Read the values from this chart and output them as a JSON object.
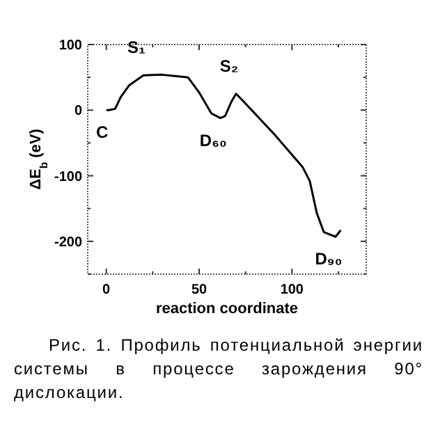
{
  "chart_data": {
    "type": "line",
    "xlabel": "reaction coordinate",
    "ylabel": "ΔE$_{b}$ (eV)",
    "xlim": [
      -10,
      140
    ],
    "ylim": [
      -250,
      100
    ],
    "xticks": [
      0,
      {
        "value": 25,
        "label": null
      },
      50,
      {
        "value": 75,
        "label": null
      },
      100,
      {
        "value": 125,
        "label": null
      }
    ],
    "yticks": [
      {
        "value": -250,
        "label": null
      },
      -200,
      {
        "value": -150,
        "label": null
      },
      -100,
      {
        "value": -50,
        "label": null
      },
      0,
      {
        "value": 50,
        "label": null
      },
      100
    ],
    "series": [
      {
        "color": "#000000",
        "x": [
          0.5,
          1.5,
          4.8,
          7.8,
          12.4,
          20,
          30,
          44,
          50,
          56.6,
          61.4,
          64,
          67.4,
          69.9,
          74,
          90.6,
          105.8,
          109.6,
          113.4,
          117.2,
          123.5,
          126
        ],
        "values": [
          0,
          0,
          2,
          20,
          38,
          53,
          54,
          50,
          27,
          -5,
          -12,
          -9,
          13,
          25,
          13,
          -37,
          -87,
          -108,
          -157,
          -186,
          -193,
          -184
        ]
      }
    ],
    "grid": false,
    "marker": "none",
    "line_style": "solid",
    "annotations": [
      {
        "text": "C",
        "x": 1.5,
        "y": 0
      },
      {
        "text": "S₁",
        "x": 20,
        "y": 53
      },
      {
        "text": "D₆₀",
        "x": 61.4,
        "y": -12
      },
      {
        "text": "S₂",
        "x": 69.9,
        "y": 25
      },
      {
        "text": "D₉₀",
        "x": 123.5,
        "y": -193
      },
      "Рис. 1. Профиль потенциальной энергии системы в процессе зарождения 90° дислокации."
    ]
  }
}
